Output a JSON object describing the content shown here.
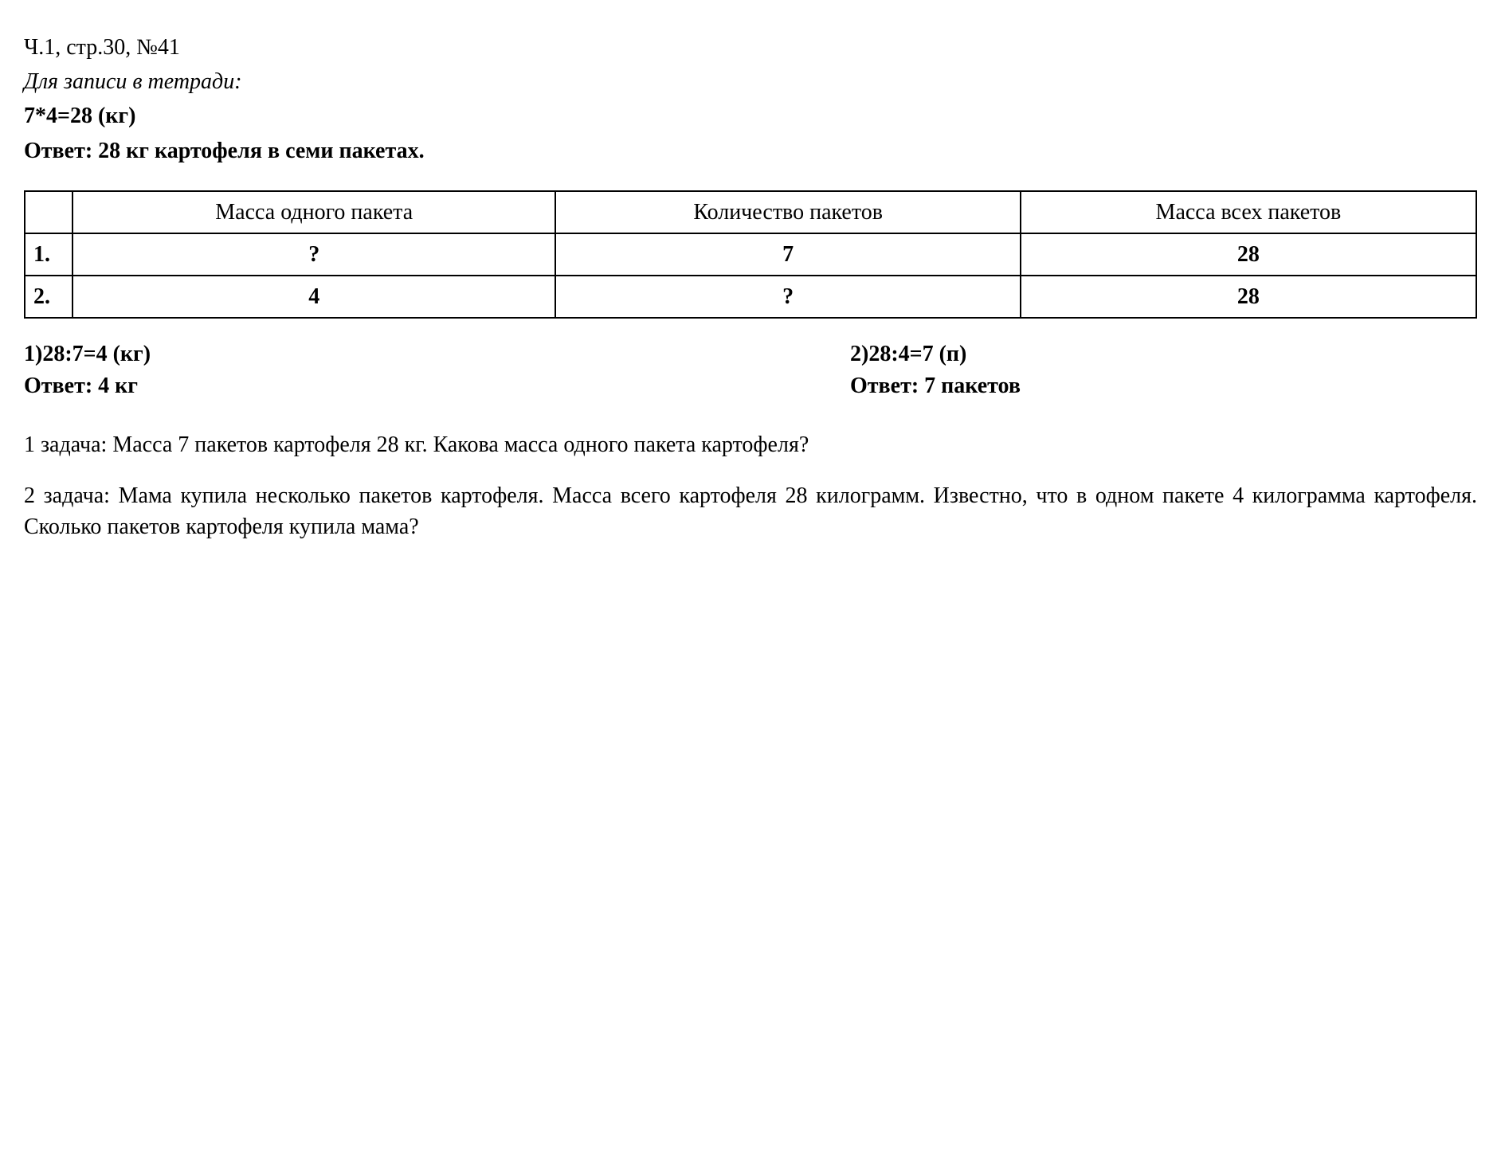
{
  "header": {
    "reference": "Ч.1, стр.30, №41",
    "subtitle": "Для записи в тетради:",
    "equation": "7*4=28 (кг)",
    "answer_label": "Ответ: 28 кг картофеля в семи пакетах."
  },
  "table": {
    "columns": [
      "",
      "Масса одного пакета",
      "Количество пакетов",
      "Масса всех пакетов"
    ],
    "rows": [
      [
        "1.",
        "?",
        "7",
        "28"
      ],
      [
        "2.",
        "4",
        "?",
        "28"
      ]
    ],
    "border_color": "#000000",
    "background_color": "#ffffff"
  },
  "solutions": {
    "left": {
      "equation": "1)28:7=4 (кг)",
      "answer": "Ответ: 4 кг"
    },
    "right": {
      "equation": "2)28:4=7 (п)",
      "answer": "Ответ: 7 пакетов"
    }
  },
  "problems": {
    "p1": "1 задача: Масса 7 пакетов картофеля 28 кг. Какова масса одного пакета картофеля?",
    "p2": "2 задача: Мама купила несколько пакетов картофеля. Масса всего картофеля 28 килограмм. Известно, что в одном пакете 4 килограмма картофеля. Сколько пакетов картофеля купила мама?"
  },
  "styling": {
    "font_family": "Times New Roman",
    "base_font_size_pt": 21,
    "text_color": "#000000",
    "background_color": "#ffffff"
  }
}
